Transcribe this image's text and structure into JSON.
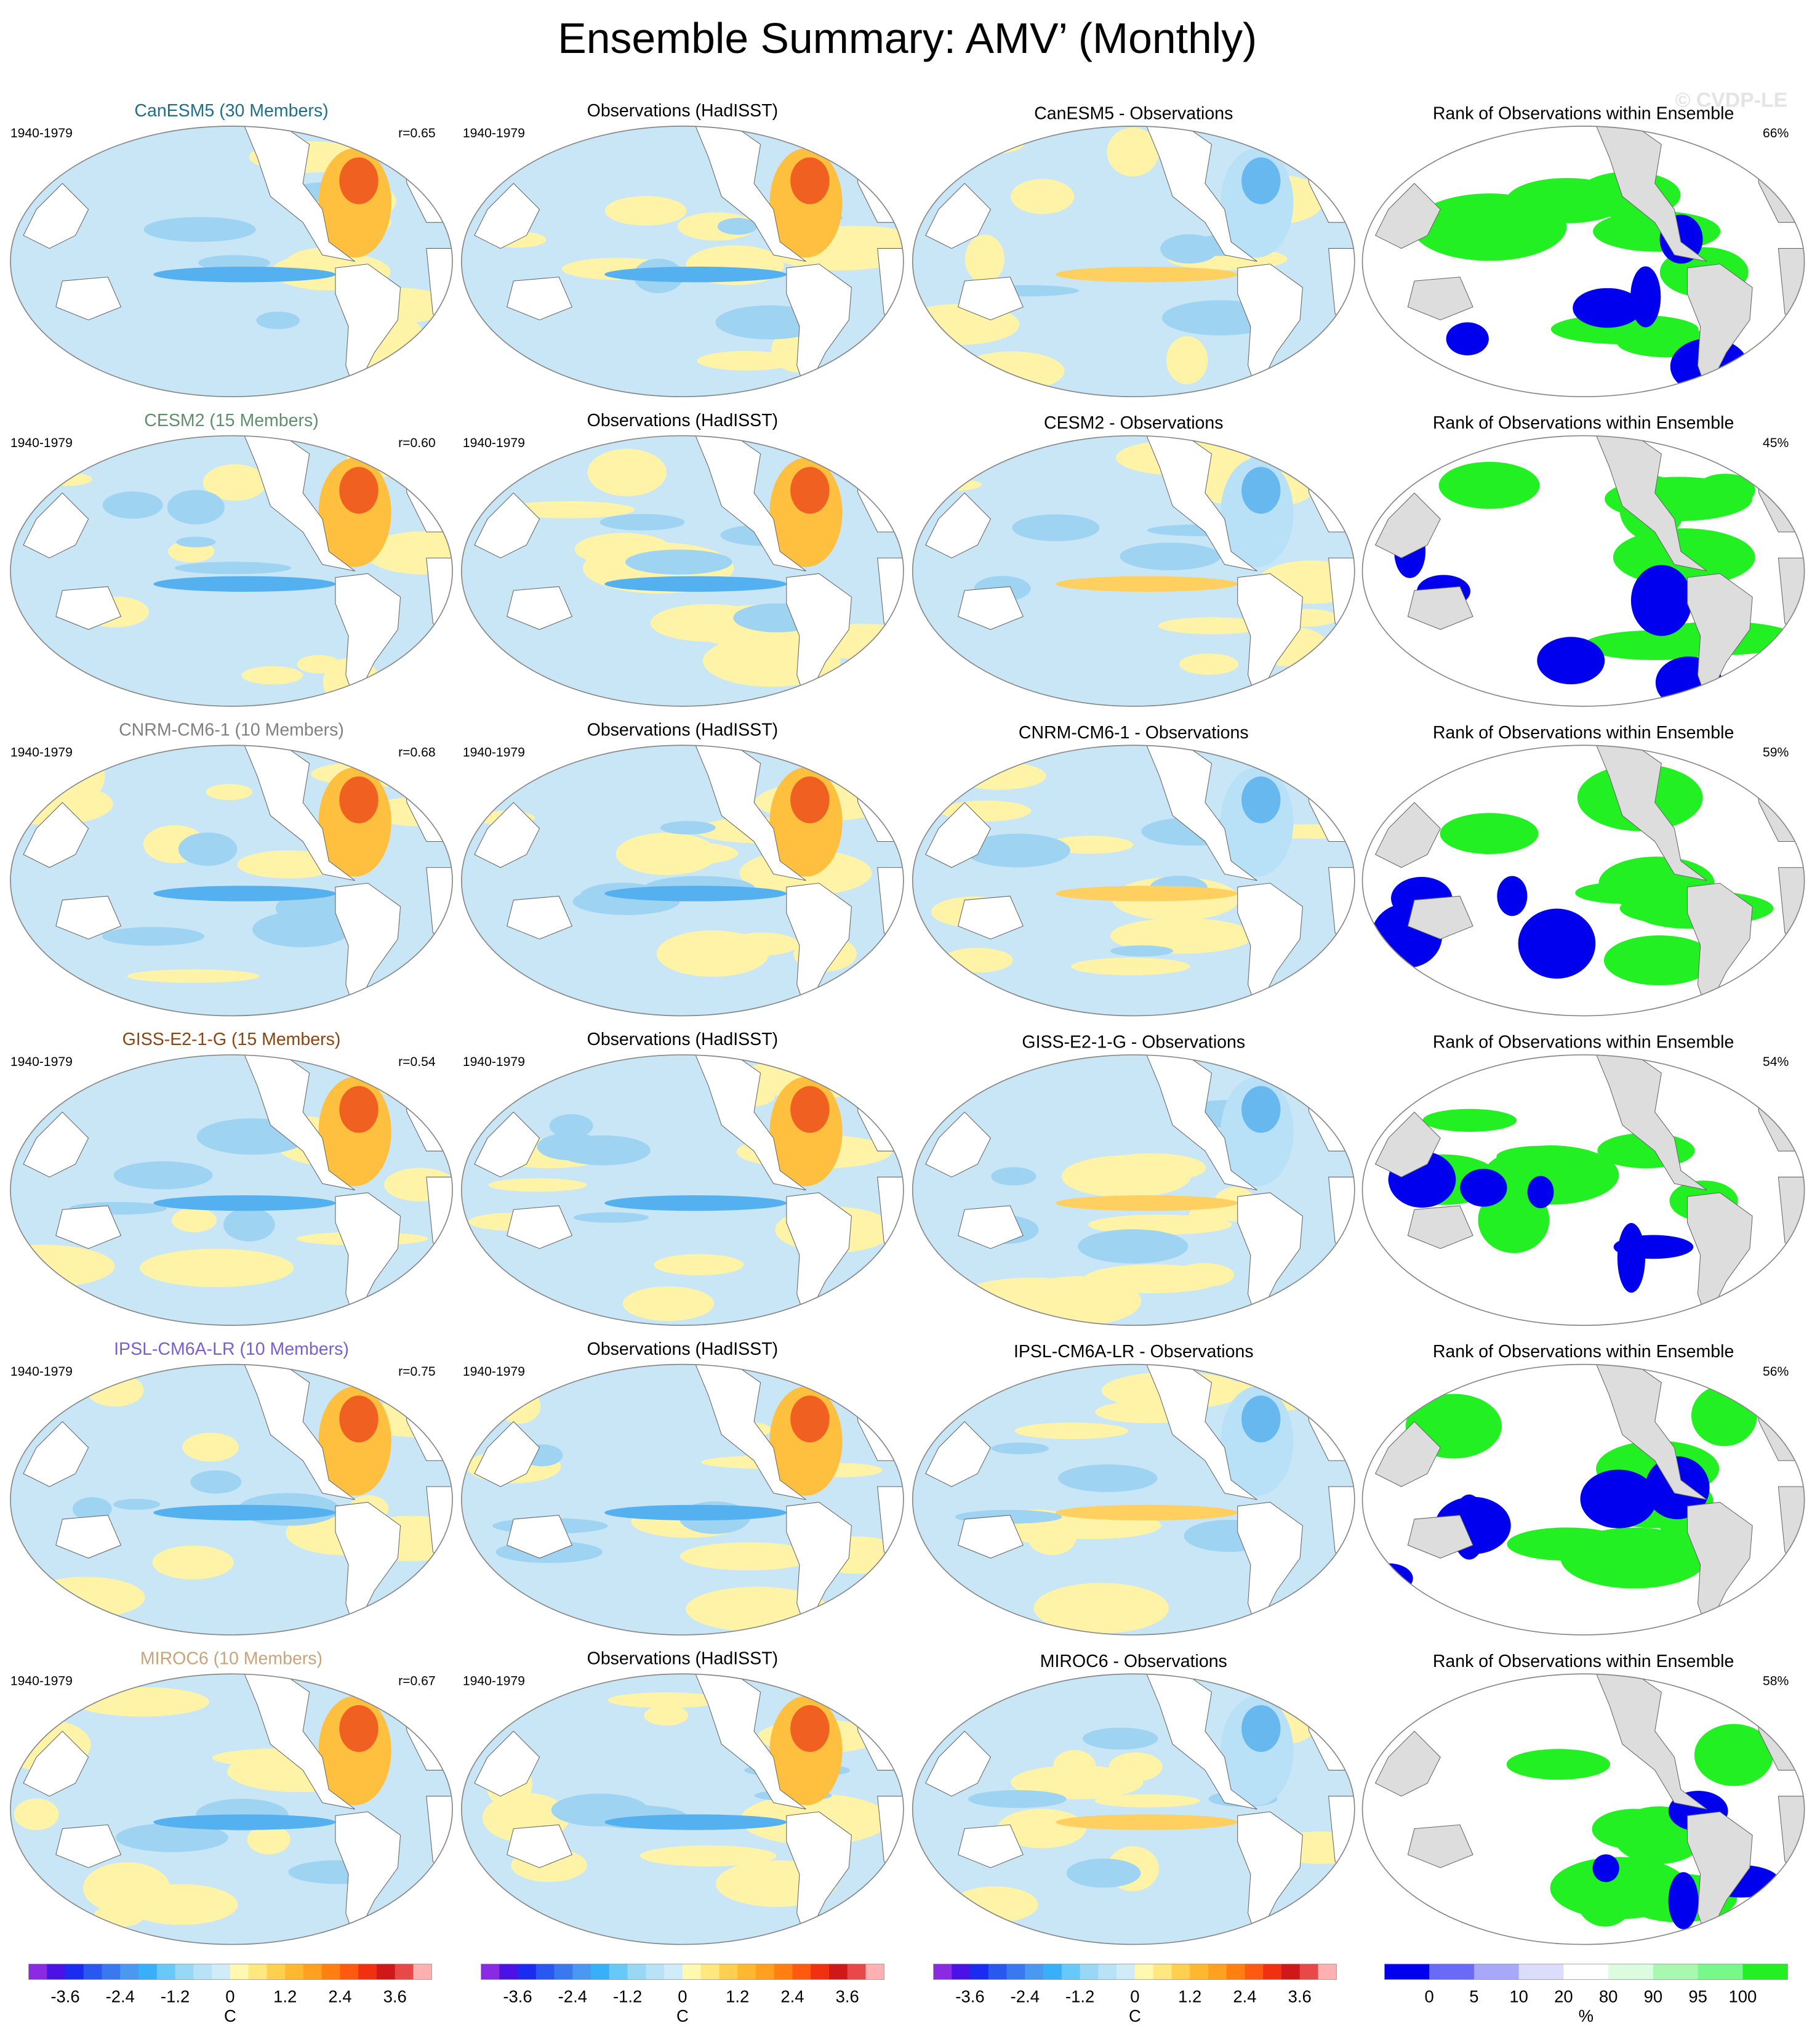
{
  "title": "Ensemble Summary: AMV’ (Monthly)",
  "watermark": "© CVDP-LE",
  "rows": [
    {
      "model_title": "CanESM5 (30 Members)",
      "title_color": "#1f6f8b",
      "period": "1940-1979",
      "r": "r=0.65",
      "obs_title": "Observations (HadISST)",
      "obs_period": "1940-1979",
      "diff_title": "CanESM5 - Observations",
      "rank_title": "Rank of Observations within Ensemble",
      "rank_pct": "66%"
    },
    {
      "model_title": "CESM2 (15 Members)",
      "title_color": "#5f8f6c",
      "period": "1940-1979",
      "r": "r=0.60",
      "obs_title": "Observations (HadISST)",
      "obs_period": "1940-1979",
      "diff_title": "CESM2 - Observations",
      "rank_title": "Rank of Observations within Ensemble",
      "rank_pct": "45%"
    },
    {
      "model_title": "CNRM-CM6-1 (10 Members)",
      "title_color": "#808080",
      "period": "1940-1979",
      "r": "r=0.68",
      "obs_title": "Observations (HadISST)",
      "obs_period": "1940-1979",
      "diff_title": "CNRM-CM6-1 - Observations",
      "rank_title": "Rank of Observations within Ensemble",
      "rank_pct": "59%"
    },
    {
      "model_title": "GISS-E2-1-G (15 Members)",
      "title_color": "#8b4513",
      "period": "1940-1979",
      "r": "r=0.54",
      "obs_title": "Observations (HadISST)",
      "obs_period": "1940-1979",
      "diff_title": "GISS-E2-1-G - Observations",
      "rank_title": "Rank of Observations within Ensemble",
      "rank_pct": "54%"
    },
    {
      "model_title": "IPSL-CM6A-LR (10 Members)",
      "title_color": "#7b5fcf",
      "period": "1940-1979",
      "r": "r=0.75",
      "obs_title": "Observations (HadISST)",
      "obs_period": "1940-1979",
      "diff_title": "IPSL-CM6A-LR - Observations",
      "rank_title": "Rank of Observations within Ensemble",
      "rank_pct": "56%"
    },
    {
      "model_title": "MIROC6 (10 Members)",
      "title_color": "#c9a37a",
      "period": "1940-1979",
      "r": "r=0.67",
      "obs_title": "Observations (HadISST)",
      "obs_period": "1940-1979",
      "diff_title": "MIROC6 - Observations",
      "rank_title": "Rank of Observations within Ensemble",
      "rank_pct": "58%"
    }
  ],
  "colorbars": [
    {
      "xlim": [
        -4.4,
        4.4
      ],
      "ticks": [
        -3.6,
        -2.4,
        -1.2,
        0,
        1.2,
        2.4,
        3.6
      ],
      "unit": "C",
      "colors": [
        "#8a2be2",
        "#4b12e6",
        "#1a2cf0",
        "#2858f0",
        "#3a78f0",
        "#4a98f0",
        "#38b0f8",
        "#68c8f8",
        "#98d8f5",
        "#b8e2f5",
        "#d0ecf8",
        "#fff8b0",
        "#ffe880",
        "#ffd050",
        "#ffb830",
        "#ffa020",
        "#ff8010",
        "#ff5a10",
        "#f03010",
        "#d01818",
        "#e84848",
        "#ffb0b0"
      ]
    },
    {
      "xlim": [
        -4.4,
        4.4
      ],
      "ticks": [
        -3.6,
        -2.4,
        -1.2,
        0,
        1.2,
        2.4,
        3.6
      ],
      "unit": "C",
      "colors": [
        "#8a2be2",
        "#4b12e6",
        "#1a2cf0",
        "#2858f0",
        "#3a78f0",
        "#4a98f0",
        "#38b0f8",
        "#68c8f8",
        "#98d8f5",
        "#b8e2f5",
        "#d0ecf8",
        "#fff8b0",
        "#ffe880",
        "#ffd050",
        "#ffb830",
        "#ffa020",
        "#ff8010",
        "#ff5a10",
        "#f03010",
        "#d01818",
        "#e84848",
        "#ffb0b0"
      ]
    },
    {
      "xlim": [
        -4.4,
        4.4
      ],
      "ticks": [
        -3.6,
        -2.4,
        -1.2,
        0,
        1.2,
        2.4,
        3.6
      ],
      "unit": "C",
      "colors": [
        "#8a2be2",
        "#4b12e6",
        "#1a2cf0",
        "#2858f0",
        "#3a78f0",
        "#4a98f0",
        "#38b0f8",
        "#68c8f8",
        "#98d8f5",
        "#b8e2f5",
        "#d0ecf8",
        "#fff8b0",
        "#ffe880",
        "#ffd050",
        "#ffb830",
        "#ffa020",
        "#ff8010",
        "#ff5a10",
        "#f03010",
        "#d01818",
        "#e84848",
        "#ffb0b0"
      ]
    },
    {
      "ticks": [
        0,
        5,
        10,
        20,
        80,
        90,
        95,
        100
      ],
      "unit": "%",
      "colors": [
        "#0000ee",
        "#6a6af8",
        "#a8a8fa",
        "#dcdcfc",
        "#ffffff",
        "#dcfce0",
        "#a8f8b0",
        "#78f888",
        "#22f022"
      ]
    }
  ]
}
